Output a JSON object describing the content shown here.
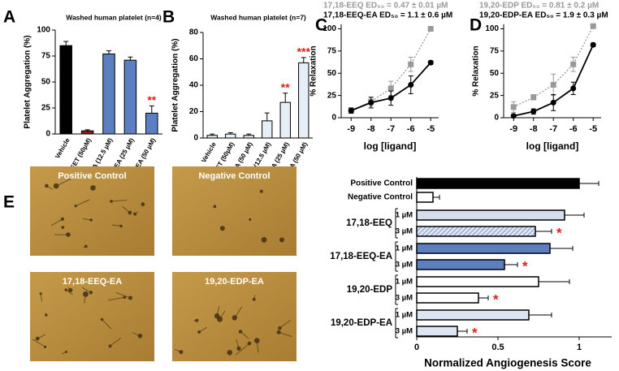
{
  "chart_data": [
    {
      "type": "bar",
      "panel_label": "A",
      "title": "Washed human platelet (n=4)",
      "y_label": "Platelet Aggregation (%)",
      "categories": [
        "Vehicle",
        "14,15-EET (50µM)",
        "17,18-EEQ-EA (12.5 µM)",
        "17,18-EEQ-EA (25 µM)",
        "17,18-EEQ-EA (50 µM)"
      ],
      "values": [
        85,
        3,
        77,
        71,
        20
      ],
      "errors": [
        4,
        1,
        3,
        3,
        7
      ],
      "colors": [
        "#000000",
        "#8b1a1a",
        "#5b7fbf",
        "#5b7fbf",
        "#5b7fbf"
      ],
      "annotations": [
        null,
        null,
        null,
        null,
        "**"
      ],
      "annotation_color": "#e0201b",
      "ylim": [
        0,
        100
      ],
      "yticks": [
        0,
        25,
        50,
        75,
        100
      ]
    },
    {
      "type": "bar",
      "panel_label": "B",
      "title": "Washed human platelet (n=7)",
      "y_label": "Platelet Aggregation (%)",
      "categories": [
        "Vehicle",
        "14,15-EET (50µM)",
        "17,18-EEQ-EA (50 µM)",
        "19,20-EDP-EA (12.5 µM)",
        "19,20-EDP-EA (25 µM)",
        "19,20-EDP-EA (50 µM)"
      ],
      "values": [
        2,
        3,
        2,
        13,
        27,
        57
      ],
      "errors": [
        1,
        1,
        1,
        6,
        7,
        4
      ],
      "colors": [
        "#e6eef8",
        "#e6eef8",
        "#e6eef8",
        "#e6eef8",
        "#e6eef8",
        "#e6eef8"
      ],
      "annotations": [
        null,
        null,
        null,
        null,
        "**",
        "***"
      ],
      "annotation_color": "#e0201b",
      "ylim": [
        0,
        80
      ],
      "yticks": [
        0,
        20,
        40,
        60,
        80
      ]
    },
    {
      "type": "line",
      "panel_label": "C",
      "x_label": "log [ligand]",
      "y_label": "% Relaxation",
      "x": [
        -9,
        -8,
        -7,
        -6,
        -5
      ],
      "series": [
        {
          "name": "17,18-EEQ ED₅₀ = 0.47 ± 0.01 µM",
          "color": "#999999",
          "dashed": true,
          "marker": "square",
          "values": [
            8,
            18,
            33,
            60,
            100
          ],
          "errors": [
            3,
            5,
            8,
            8,
            0
          ]
        },
        {
          "name": "17,18-EEQ-EA ED₅₀ = 1.1 ± 0.6 µM",
          "color": "#000000",
          "dashed": false,
          "marker": "circle",
          "values": [
            8,
            17,
            22,
            37,
            62
          ],
          "errors": [
            3,
            6,
            8,
            10,
            2
          ]
        }
      ],
      "xlim": [
        -9.5,
        -4.6
      ],
      "xticks": [
        -9,
        -8,
        -7,
        -6,
        -5
      ],
      "ylim": [
        0,
        105
      ],
      "yticks": [
        0,
        25,
        50,
        75,
        100
      ]
    },
    {
      "type": "line",
      "panel_label": "D",
      "x_label": "log [ligand]",
      "y_label": "% Relaxation",
      "x": [
        -9,
        -8,
        -7,
        -6,
        -5
      ],
      "series": [
        {
          "name": "19,20-EDP ED₅₀ = 0.81 ± 0.2 µM",
          "color": "#999999",
          "dashed": true,
          "marker": "square",
          "values": [
            12,
            23,
            37,
            60,
            103
          ],
          "errors": [
            6,
            3,
            12,
            8,
            0
          ]
        },
        {
          "name": "19,20-EDP-EA ED₅₀ = 1.9 ± 0.3 µM",
          "color": "#000000",
          "dashed": false,
          "marker": "circle",
          "values": [
            2,
            7,
            17,
            33,
            82
          ],
          "errors": [
            2,
            3,
            9,
            7,
            2
          ]
        }
      ],
      "xlim": [
        -9.5,
        -4.6
      ],
      "xticks": [
        -9,
        -8,
        -7,
        -6,
        -5
      ],
      "ylim": [
        0,
        105
      ],
      "yticks": [
        0,
        25,
        50,
        75,
        100
      ]
    },
    {
      "type": "hbar",
      "x_label": "Normalized Angiogenesis Score",
      "categories": [
        "Positive Control",
        "Negative Control",
        "1 µM",
        "3 µM",
        "1 µM",
        "3 µM",
        "1 µM",
        "3 µM",
        "1 µM",
        "3 µM"
      ],
      "groups": [
        "17,18-EEQ",
        "17,18-EEQ-EA",
        "19,20-EDP",
        "19,20-EDP-EA"
      ],
      "values": [
        1.0,
        0.1,
        0.91,
        0.73,
        0.82,
        0.54,
        0.75,
        0.38,
        0.69,
        0.25
      ],
      "errors": [
        0.12,
        0.04,
        0.12,
        0.1,
        0.14,
        0.08,
        0.19,
        0.06,
        0.14,
        0.06
      ],
      "colors": [
        "#000000",
        "#ffffff",
        "#d4deec",
        "#d4deec",
        "#5b7fbf",
        "#5b7fbf",
        "#ffffff",
        "#ffffff",
        "#dce6f2",
        "#dce6f2"
      ],
      "hatched": [
        false,
        false,
        false,
        true,
        false,
        false,
        false,
        false,
        false,
        false
      ],
      "annotations": [
        null,
        null,
        null,
        "*",
        null,
        "*",
        null,
        "*",
        null,
        "*"
      ],
      "annotation_color": "#e0201b",
      "xlim": [
        0,
        1.2
      ],
      "xticks": [
        0,
        0.5,
        1
      ]
    }
  ],
  "images": {
    "panel_label": "E",
    "labels": [
      "Positive Control",
      "Negative Control",
      "17,18-EEQ-EA",
      "19,20-EDP-EA"
    ]
  }
}
